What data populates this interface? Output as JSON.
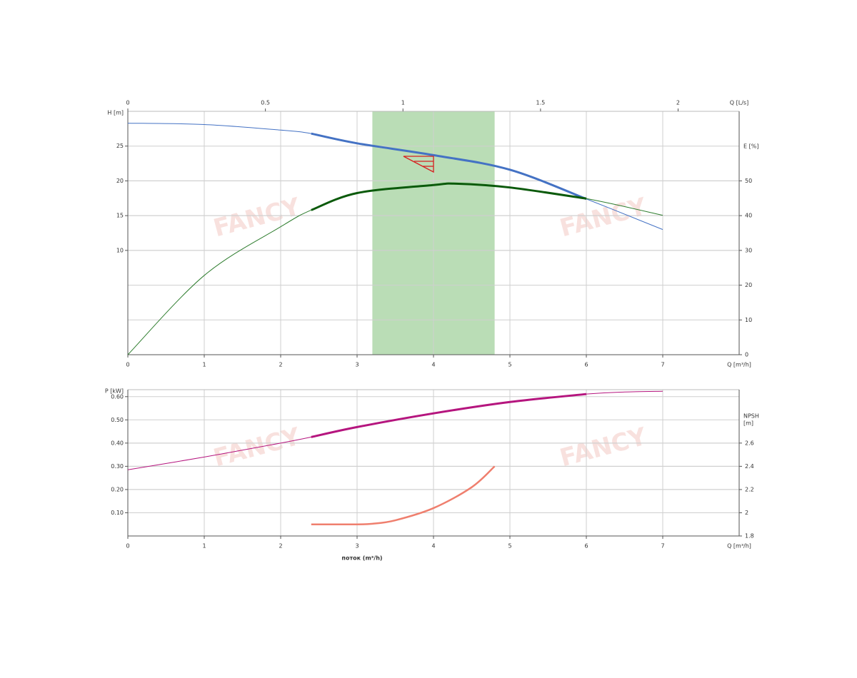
{
  "chart_data": [
    {
      "type": "line",
      "xlabel": "Q [m³/h]",
      "x2label": "Q [L/s]",
      "ylabel": "H [m]",
      "y2label": "E [%]",
      "watermark": "FANCY",
      "xlim": [
        0,
        8
      ],
      "xticks": [
        0,
        1,
        2,
        3,
        4,
        5,
        6,
        7
      ],
      "x2lim": [
        0,
        2.222
      ],
      "x2ticks": [
        0,
        0.5,
        1,
        1.5,
        2
      ],
      "ylim": [
        -5,
        30
      ],
      "yticks": [
        10,
        15,
        20,
        25
      ],
      "y2lim": [
        0,
        70
      ],
      "y2ticks": [
        0,
        10,
        20,
        30,
        40,
        50
      ],
      "grid": true,
      "band": {
        "xlim": [
          3.2,
          4.8
        ],
        "color": "#b3d9ae"
      },
      "series": [
        {
          "color": "#4472c4",
          "axis": "y",
          "thick_xlim": [
            2.4,
            6
          ],
          "x": [
            0,
            1,
            2,
            2.4,
            3,
            4,
            5,
            6,
            7
          ],
          "values": [
            28.3,
            28.1,
            27.3,
            26.8,
            25.4,
            23.7,
            21.6,
            17.4,
            13
          ]
        },
        {
          "color": "#2e7d2e",
          "thick_color": "#0b5a0b",
          "axis": "y2",
          "thick_xlim": [
            2.4,
            6
          ],
          "x": [
            0,
            1,
            2,
            2.4,
            3,
            4,
            4.3,
            5,
            6,
            7
          ],
          "values": [
            0,
            22.8,
            36.8,
            41.6,
            46.5,
            48.8,
            49.2,
            48.1,
            44.9,
            40.1
          ]
        }
      ]
    },
    {
      "type": "line",
      "xlabel": "Q [m³/h]",
      "xtitle": "поток (m³/h)",
      "ylabel": "P [kW]",
      "y2label": [
        "NPSH",
        "[m]"
      ],
      "watermark": "FANCY",
      "xlim": [
        0,
        8
      ],
      "xticks": [
        0,
        1,
        2,
        3,
        4,
        5,
        6,
        7
      ],
      "ylim": [
        0,
        0.63
      ],
      "yticks": [
        {
          "value": 0.1,
          "label": "0.10"
        },
        {
          "value": 0.2,
          "label": "0.20"
        },
        {
          "value": 0.3,
          "label": "0.30"
        },
        {
          "value": 0.4,
          "label": "0.40"
        },
        {
          "value": 0.5,
          "label": "0.50"
        },
        {
          "value": 0.6,
          "label": "0.60"
        }
      ],
      "y2lim": [
        1.8,
        3.06
      ],
      "y2ticks": [
        1.8,
        2,
        2.2,
        2.4,
        2.6
      ],
      "grid": true,
      "series": [
        {
          "color": "#b5157e",
          "axis": "y",
          "thick_xlim": [
            2.4,
            6
          ],
          "x": [
            0,
            1,
            2,
            2.4,
            3,
            4,
            5,
            6,
            6.5,
            7
          ],
          "values": [
            0.285,
            0.34,
            0.4,
            0.426,
            0.469,
            0.528,
            0.577,
            0.611,
            0.62,
            0.623
          ]
        },
        {
          "color": "#ef7f6e",
          "axis": "y2",
          "width": 2.5,
          "x": [
            2.4,
            3,
            3.2,
            3.5,
            4,
            4.5,
            4.8
          ],
          "values": [
            1.9,
            1.9,
            1.905,
            1.935,
            2.04,
            2.22,
            2.4
          ]
        }
      ]
    }
  ]
}
